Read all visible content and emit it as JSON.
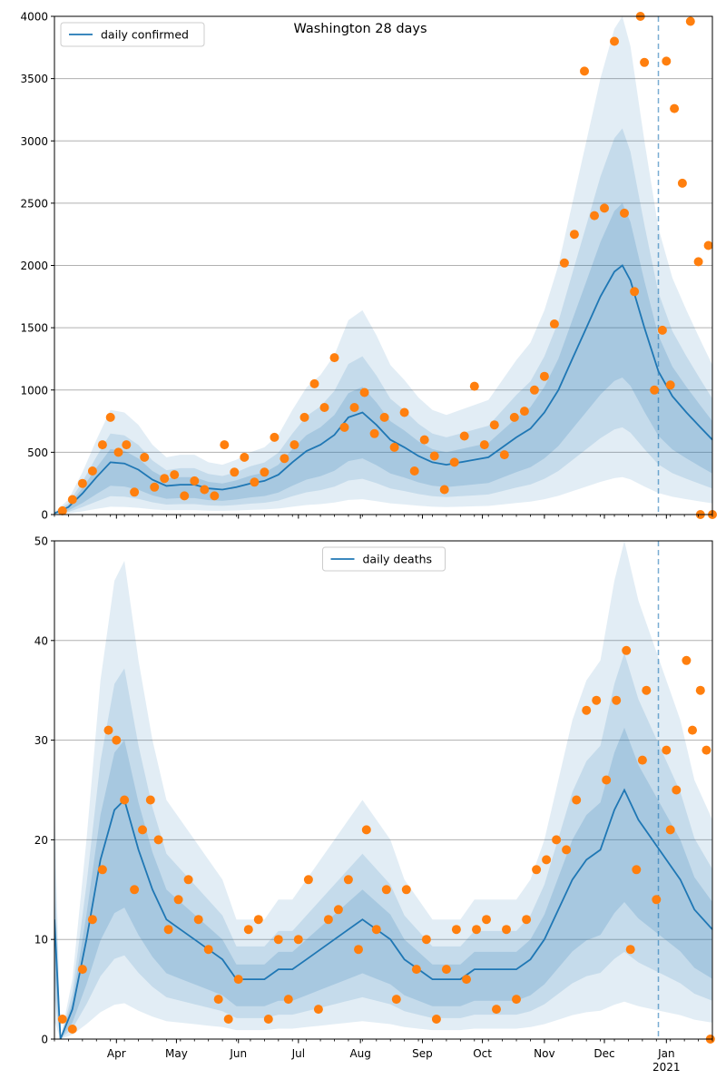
{
  "title": "Washington 28 days",
  "colors": {
    "line": "#1f77b4",
    "points": "#ff7f0e",
    "band": "#1f77b4",
    "grid": "#b0b0b0",
    "vline": "#1f77b4"
  },
  "x_axis": {
    "start": "2020-03-01",
    "end": "2021-01-24",
    "ticks": [
      {
        "date": "2020-04-01",
        "label": "Apr"
      },
      {
        "date": "2020-05-01",
        "label": "May"
      },
      {
        "date": "2020-06-01",
        "label": "Jun"
      },
      {
        "date": "2020-07-01",
        "label": "Jul"
      },
      {
        "date": "2020-08-01",
        "label": "Aug"
      },
      {
        "date": "2020-09-01",
        "label": "Sep"
      },
      {
        "date": "2020-10-01",
        "label": "Oct"
      },
      {
        "date": "2020-11-01",
        "label": "Nov"
      },
      {
        "date": "2020-12-01",
        "label": "Dec"
      },
      {
        "date": "2021-01-01",
        "label": "Jan"
      }
    ],
    "year_label": "2021",
    "forecast_start": "2020-12-28"
  },
  "chart_data": [
    {
      "type": "line",
      "legend": {
        "label": "daily confirmed",
        "position": "upper left"
      },
      "ylim": [
        0,
        4000
      ],
      "yticks": [
        0,
        500,
        1000,
        1500,
        2000,
        2500,
        3000,
        3500,
        4000
      ],
      "grid": "horizontal",
      "series_line": {
        "name": "daily confirmed",
        "points": [
          [
            "2020-03-01",
            10
          ],
          [
            "2020-03-08",
            60
          ],
          [
            "2020-03-15",
            170
          ],
          [
            "2020-03-22",
            300
          ],
          [
            "2020-03-29",
            420
          ],
          [
            "2020-04-05",
            410
          ],
          [
            "2020-04-12",
            360
          ],
          [
            "2020-04-19",
            280
          ],
          [
            "2020-04-26",
            230
          ],
          [
            "2020-05-03",
            240
          ],
          [
            "2020-05-10",
            240
          ],
          [
            "2020-05-17",
            210
          ],
          [
            "2020-05-24",
            200
          ],
          [
            "2020-05-31",
            220
          ],
          [
            "2020-06-07",
            250
          ],
          [
            "2020-06-14",
            270
          ],
          [
            "2020-06-21",
            320
          ],
          [
            "2020-06-28",
            420
          ],
          [
            "2020-07-05",
            510
          ],
          [
            "2020-07-12",
            560
          ],
          [
            "2020-07-19",
            640
          ],
          [
            "2020-07-26",
            780
          ],
          [
            "2020-08-02",
            820
          ],
          [
            "2020-08-09",
            720
          ],
          [
            "2020-08-16",
            600
          ],
          [
            "2020-08-23",
            540
          ],
          [
            "2020-08-30",
            470
          ],
          [
            "2020-09-06",
            420
          ],
          [
            "2020-09-13",
            400
          ],
          [
            "2020-09-20",
            420
          ],
          [
            "2020-09-27",
            440
          ],
          [
            "2020-10-04",
            460
          ],
          [
            "2020-10-11",
            540
          ],
          [
            "2020-10-18",
            620
          ],
          [
            "2020-10-25",
            690
          ],
          [
            "2020-11-01",
            820
          ],
          [
            "2020-11-08",
            1000
          ],
          [
            "2020-11-15",
            1250
          ],
          [
            "2020-11-22",
            1500
          ],
          [
            "2020-11-29",
            1750
          ],
          [
            "2020-12-06",
            1950
          ],
          [
            "2020-12-10",
            2000
          ],
          [
            "2020-12-14",
            1880
          ],
          [
            "2020-12-21",
            1500
          ],
          [
            "2020-12-28",
            1150
          ],
          [
            "2021-01-04",
            950
          ],
          [
            "2021-01-11",
            820
          ],
          [
            "2021-01-18",
            700
          ],
          [
            "2021-01-24",
            600
          ]
        ]
      },
      "series_points": {
        "name": "observed",
        "points": [
          [
            "2020-03-05",
            30
          ],
          [
            "2020-03-10",
            120
          ],
          [
            "2020-03-15",
            250
          ],
          [
            "2020-03-20",
            350
          ],
          [
            "2020-03-25",
            560
          ],
          [
            "2020-03-29",
            780
          ],
          [
            "2020-04-02",
            500
          ],
          [
            "2020-04-06",
            560
          ],
          [
            "2020-04-10",
            180
          ],
          [
            "2020-04-15",
            460
          ],
          [
            "2020-04-20",
            220
          ],
          [
            "2020-04-25",
            290
          ],
          [
            "2020-04-30",
            320
          ],
          [
            "2020-05-05",
            150
          ],
          [
            "2020-05-10",
            270
          ],
          [
            "2020-05-15",
            200
          ],
          [
            "2020-05-20",
            150
          ],
          [
            "2020-05-25",
            560
          ],
          [
            "2020-05-30",
            340
          ],
          [
            "2020-06-04",
            460
          ],
          [
            "2020-06-09",
            260
          ],
          [
            "2020-06-14",
            340
          ],
          [
            "2020-06-19",
            620
          ],
          [
            "2020-06-24",
            450
          ],
          [
            "2020-06-29",
            560
          ],
          [
            "2020-07-04",
            780
          ],
          [
            "2020-07-09",
            1050
          ],
          [
            "2020-07-14",
            860
          ],
          [
            "2020-07-19",
            1260
          ],
          [
            "2020-07-24",
            700
          ],
          [
            "2020-07-29",
            860
          ],
          [
            "2020-08-03",
            980
          ],
          [
            "2020-08-08",
            650
          ],
          [
            "2020-08-13",
            780
          ],
          [
            "2020-08-18",
            540
          ],
          [
            "2020-08-23",
            820
          ],
          [
            "2020-08-28",
            350
          ],
          [
            "2020-09-02",
            600
          ],
          [
            "2020-09-07",
            470
          ],
          [
            "2020-09-12",
            200
          ],
          [
            "2020-09-17",
            420
          ],
          [
            "2020-09-22",
            630
          ],
          [
            "2020-09-27",
            1030
          ],
          [
            "2020-10-02",
            560
          ],
          [
            "2020-10-07",
            720
          ],
          [
            "2020-10-12",
            480
          ],
          [
            "2020-10-17",
            780
          ],
          [
            "2020-10-22",
            830
          ],
          [
            "2020-10-27",
            1000
          ],
          [
            "2020-11-01",
            1110
          ],
          [
            "2020-11-06",
            1530
          ],
          [
            "2020-11-11",
            2020
          ],
          [
            "2020-11-16",
            2250
          ],
          [
            "2020-11-21",
            3560
          ],
          [
            "2020-11-26",
            2400
          ],
          [
            "2020-12-01",
            2460
          ],
          [
            "2020-12-06",
            3800
          ],
          [
            "2020-12-11",
            2420
          ],
          [
            "2020-12-16",
            1790
          ],
          [
            "2020-12-21",
            3630
          ],
          [
            "2020-12-26",
            1000
          ],
          [
            "2021-01-01",
            3640
          ],
          [
            "2021-01-05",
            3260
          ],
          [
            "2021-01-09",
            2660
          ],
          [
            "2021-01-13",
            3960
          ],
          [
            "2021-01-17",
            2030
          ],
          [
            "2021-01-22",
            2160
          ],
          [
            "2020-12-19",
            4020
          ],
          [
            "2020-12-30",
            1480
          ],
          [
            "2021-01-03",
            1040
          ],
          [
            "2021-01-18",
            0
          ],
          [
            "2021-01-24",
            0
          ]
        ]
      }
    },
    {
      "type": "line",
      "legend": {
        "label": "daily deaths",
        "position": "upper center"
      },
      "ylim": [
        0,
        50
      ],
      "yticks": [
        0,
        10,
        20,
        30,
        40,
        50
      ],
      "grid": "horizontal",
      "series_line": {
        "name": "daily deaths",
        "points": [
          [
            "2020-03-01",
            12
          ],
          [
            "2020-03-04",
            0
          ],
          [
            "2020-03-10",
            3
          ],
          [
            "2020-03-17",
            10
          ],
          [
            "2020-03-24",
            18
          ],
          [
            "2020-03-31",
            23
          ],
          [
            "2020-04-05",
            24
          ],
          [
            "2020-04-12",
            19
          ],
          [
            "2020-04-19",
            15
          ],
          [
            "2020-04-26",
            12
          ],
          [
            "2020-05-03",
            11
          ],
          [
            "2020-05-10",
            10
          ],
          [
            "2020-05-17",
            9
          ],
          [
            "2020-05-24",
            8
          ],
          [
            "2020-05-31",
            6
          ],
          [
            "2020-06-07",
            6
          ],
          [
            "2020-06-14",
            6
          ],
          [
            "2020-06-21",
            7
          ],
          [
            "2020-06-28",
            7
          ],
          [
            "2020-07-05",
            8
          ],
          [
            "2020-07-12",
            9
          ],
          [
            "2020-07-19",
            10
          ],
          [
            "2020-07-26",
            11
          ],
          [
            "2020-08-02",
            12
          ],
          [
            "2020-08-09",
            11
          ],
          [
            "2020-08-16",
            10
          ],
          [
            "2020-08-23",
            8
          ],
          [
            "2020-08-30",
            7
          ],
          [
            "2020-09-06",
            6
          ],
          [
            "2020-09-13",
            6
          ],
          [
            "2020-09-20",
            6
          ],
          [
            "2020-09-27",
            7
          ],
          [
            "2020-10-04",
            7
          ],
          [
            "2020-10-11",
            7
          ],
          [
            "2020-10-18",
            7
          ],
          [
            "2020-10-25",
            8
          ],
          [
            "2020-11-01",
            10
          ],
          [
            "2020-11-08",
            13
          ],
          [
            "2020-11-15",
            16
          ],
          [
            "2020-11-22",
            18
          ],
          [
            "2020-11-29",
            19
          ],
          [
            "2020-12-06",
            23
          ],
          [
            "2020-12-11",
            25
          ],
          [
            "2020-12-18",
            22
          ],
          [
            "2020-12-25",
            20
          ],
          [
            "2021-01-01",
            18
          ],
          [
            "2021-01-08",
            16
          ],
          [
            "2021-01-15",
            13
          ],
          [
            "2021-01-24",
            11
          ]
        ]
      },
      "series_points": {
        "name": "observed",
        "points": [
          [
            "2020-03-05",
            2
          ],
          [
            "2020-03-10",
            1
          ],
          [
            "2020-03-15",
            7
          ],
          [
            "2020-03-20",
            12
          ],
          [
            "2020-03-25",
            17
          ],
          [
            "2020-03-28",
            31
          ],
          [
            "2020-04-01",
            30
          ],
          [
            "2020-04-05",
            24
          ],
          [
            "2020-04-10",
            15
          ],
          [
            "2020-04-14",
            21
          ],
          [
            "2020-04-18",
            24
          ],
          [
            "2020-04-22",
            20
          ],
          [
            "2020-04-27",
            11
          ],
          [
            "2020-05-02",
            14
          ],
          [
            "2020-05-07",
            16
          ],
          [
            "2020-05-12",
            12
          ],
          [
            "2020-05-17",
            9
          ],
          [
            "2020-05-22",
            4
          ],
          [
            "2020-05-27",
            2
          ],
          [
            "2020-06-01",
            6
          ],
          [
            "2020-06-06",
            11
          ],
          [
            "2020-06-11",
            12
          ],
          [
            "2020-06-16",
            2
          ],
          [
            "2020-06-21",
            10
          ],
          [
            "2020-06-26",
            4
          ],
          [
            "2020-07-01",
            10
          ],
          [
            "2020-07-06",
            16
          ],
          [
            "2020-07-11",
            3
          ],
          [
            "2020-07-16",
            12
          ],
          [
            "2020-07-21",
            13
          ],
          [
            "2020-07-26",
            16
          ],
          [
            "2020-07-31",
            9
          ],
          [
            "2020-08-04",
            21
          ],
          [
            "2020-08-09",
            11
          ],
          [
            "2020-08-14",
            15
          ],
          [
            "2020-08-19",
            4
          ],
          [
            "2020-08-24",
            15
          ],
          [
            "2020-08-29",
            7
          ],
          [
            "2020-09-03",
            10
          ],
          [
            "2020-09-08",
            2
          ],
          [
            "2020-09-13",
            7
          ],
          [
            "2020-09-18",
            11
          ],
          [
            "2020-09-23",
            6
          ],
          [
            "2020-09-28",
            11
          ],
          [
            "2020-10-03",
            12
          ],
          [
            "2020-10-08",
            3
          ],
          [
            "2020-10-13",
            11
          ],
          [
            "2020-10-18",
            4
          ],
          [
            "2020-10-23",
            12
          ],
          [
            "2020-10-28",
            17
          ],
          [
            "2020-11-02",
            18
          ],
          [
            "2020-11-07",
            20
          ],
          [
            "2020-11-12",
            19
          ],
          [
            "2020-11-17",
            24
          ],
          [
            "2020-11-22",
            33
          ],
          [
            "2020-11-27",
            34
          ],
          [
            "2020-12-02",
            26
          ],
          [
            "2020-12-07",
            34
          ],
          [
            "2020-12-12",
            39
          ],
          [
            "2020-12-17",
            17
          ],
          [
            "2020-12-22",
            35
          ],
          [
            "2020-12-27",
            14
          ],
          [
            "2021-01-01",
            29
          ],
          [
            "2021-01-06",
            25
          ],
          [
            "2021-01-11",
            38
          ],
          [
            "2021-01-14",
            31
          ],
          [
            "2021-01-18",
            35
          ],
          [
            "2021-01-21",
            29
          ],
          [
            "2021-01-23",
            0
          ],
          [
            "2020-12-14",
            9
          ],
          [
            "2020-12-20",
            28
          ],
          [
            "2021-01-03",
            21
          ]
        ]
      }
    }
  ]
}
